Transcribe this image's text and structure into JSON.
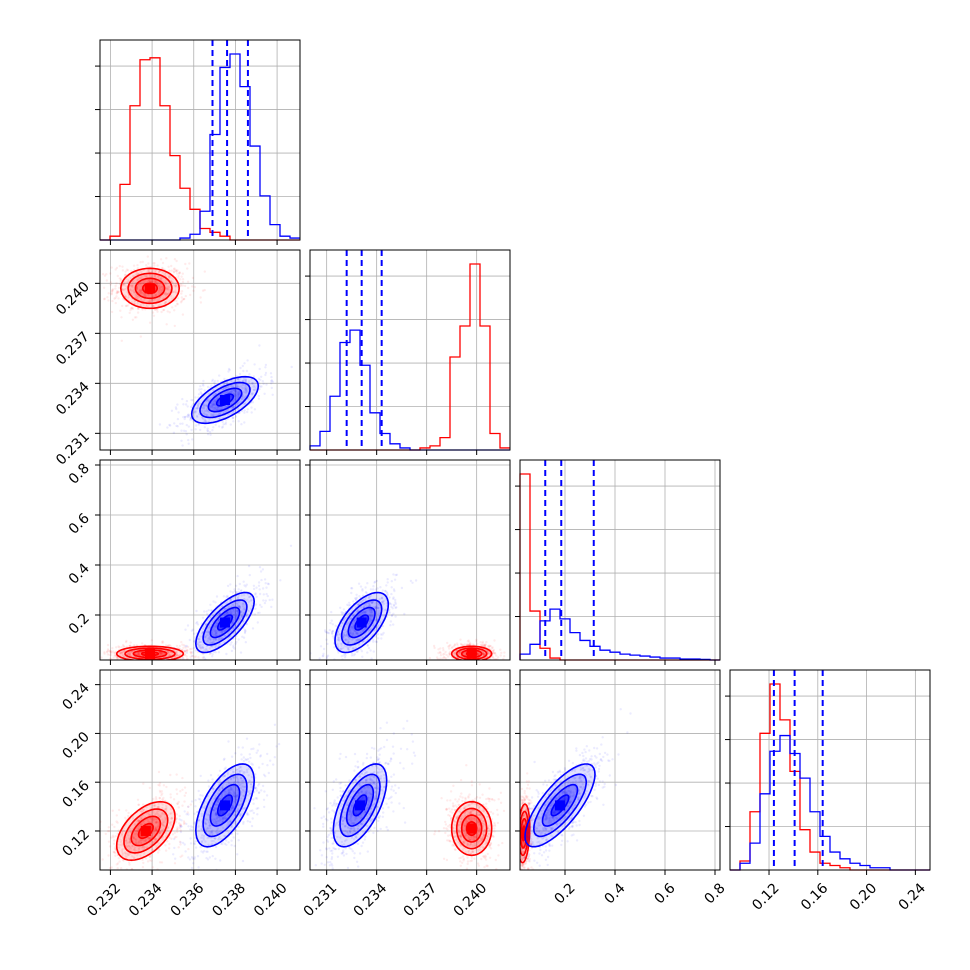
{
  "chart_data": {
    "type": "corner",
    "grid": true,
    "series_colors": [
      "#ff0000",
      "#0000ff"
    ],
    "quantile_line_color": "#0000ff",
    "parameters": [
      {
        "range": [
          0.2315,
          0.2411
        ],
        "ticks": [
          "0.232",
          "0.234",
          "0.236",
          "0.238",
          "0.240"
        ],
        "tick_values": [
          0.232,
          0.234,
          0.236,
          0.238,
          0.24
        ]
      },
      {
        "range": [
          0.23,
          0.242
        ],
        "ticks": [
          "0.231",
          "0.234",
          "0.237",
          "0.240"
        ],
        "tick_values": [
          0.231,
          0.234,
          0.237,
          0.24
        ]
      },
      {
        "range": [
          0.02,
          0.82
        ],
        "ticks": [
          "0.2",
          "0.4",
          "0.6",
          "0.8"
        ],
        "tick_values": [
          0.2,
          0.4,
          0.6,
          0.8
        ]
      },
      {
        "range": [
          0.088,
          0.252
        ],
        "ticks": [
          "0.12",
          "0.16",
          "0.20",
          "0.24"
        ],
        "tick_values": [
          0.12,
          0.16,
          0.2,
          0.24
        ]
      }
    ],
    "diagonal": [
      {
        "quantiles": [
          0.2369,
          0.2376,
          0.2386
        ],
        "hist_red": {
          "edges_start": 0.2315,
          "bin_width": 0.00048,
          "counts": [
            0,
            0.02,
            0.29,
            0.7,
            0.94,
            0.95,
            0.7,
            0.44,
            0.27,
            0.16,
            0.06,
            0.04,
            0.02,
            0,
            0,
            0,
            0,
            0,
            0,
            0
          ]
        },
        "hist_blue": {
          "edges_start": 0.2315,
          "bin_width": 0.00048,
          "counts": [
            0,
            0,
            0,
            0,
            0,
            0,
            0,
            0,
            0.01,
            0.03,
            0.15,
            0.55,
            0.9,
            0.97,
            0.8,
            0.49,
            0.23,
            0.08,
            0.02,
            0.01
          ]
        }
      },
      {
        "quantiles": [
          0.2322,
          0.2331,
          0.2343
        ],
        "hist_red": {
          "edges_start": 0.23,
          "bin_width": 0.0006,
          "counts": [
            0,
            0,
            0,
            0,
            0,
            0,
            0,
            0,
            0,
            0,
            0,
            0.01,
            0.02,
            0.06,
            0.45,
            0.6,
            0.9,
            0.6,
            0.08,
            0.01
          ]
        },
        "hist_blue": {
          "edges_start": 0.23,
          "bin_width": 0.0006,
          "counts": [
            0.02,
            0.09,
            0.26,
            0.52,
            0.58,
            0.41,
            0.18,
            0.08,
            0.03,
            0.01,
            0,
            0,
            0,
            0,
            0,
            0,
            0,
            0,
            0,
            0
          ]
        }
      },
      {
        "quantiles": [
          0.121,
          0.185,
          0.315
        ],
        "hist_red": {
          "edges_start": 0.02,
          "bin_width": 0.04,
          "counts": [
            0.95,
            0.25,
            0.06,
            0.01,
            0,
            0,
            0,
            0,
            0,
            0,
            0,
            0,
            0,
            0,
            0,
            0,
            0,
            0,
            0,
            0
          ]
        },
        "hist_blue": {
          "edges_start": 0.02,
          "bin_width": 0.04,
          "counts": [
            0.03,
            0.08,
            0.2,
            0.26,
            0.21,
            0.14,
            0.1,
            0.07,
            0.05,
            0.04,
            0.03,
            0.025,
            0.02,
            0.015,
            0.01,
            0.01,
            0.005,
            0.005,
            0.003,
            0
          ]
        }
      },
      {
        "quantiles": [
          0.124,
          0.141,
          0.164
        ],
        "hist_red": {
          "edges_start": 0.088,
          "bin_width": 0.0082,
          "counts": [
            0,
            0.04,
            0.26,
            0.61,
            0.83,
            0.67,
            0.44,
            0.18,
            0.08,
            0.03,
            0.02,
            0.01,
            0,
            0,
            0,
            0,
            0,
            0,
            0,
            0
          ]
        },
        "hist_blue": {
          "edges_start": 0.088,
          "bin_width": 0.0082,
          "counts": [
            0,
            0.03,
            0.12,
            0.34,
            0.53,
            0.6,
            0.52,
            0.41,
            0.26,
            0.15,
            0.08,
            0.05,
            0.03,
            0.02,
            0.01,
            0.01,
            0,
            0,
            0,
            0
          ]
        }
      }
    ],
    "blobs": {
      "1-0": {
        "red": {
          "mean": [
            0.2339,
            0.2397
          ],
          "sd": [
            0.0007,
            0.0006
          ],
          "corr": 0.0
        },
        "blue": {
          "mean": [
            0.2375,
            0.233
          ],
          "sd": [
            0.0008,
            0.0007
          ],
          "corr": 0.6
        }
      },
      "2-0": {
        "red": {
          "mean": [
            0.2339,
            0.045
          ],
          "sd": [
            0.0008,
            0.015
          ],
          "corr": 0.0
        },
        "blue": {
          "mean": [
            0.2375,
            0.17
          ],
          "sd": [
            0.0007,
            0.06
          ],
          "corr": 0.7
        }
      },
      "2-1": {
        "red": {
          "mean": [
            0.2397,
            0.045
          ],
          "sd": [
            0.0006,
            0.015
          ],
          "corr": 0.0
        },
        "blue": {
          "mean": [
            0.2331,
            0.17
          ],
          "sd": [
            0.0008,
            0.06
          ],
          "corr": 0.6
        }
      },
      "3-0": {
        "red": {
          "mean": [
            0.2337,
            0.12
          ],
          "sd": [
            0.0007,
            0.012
          ],
          "corr": 0.5
        },
        "blue": {
          "mean": [
            0.2375,
            0.141
          ],
          "sd": [
            0.0007,
            0.017
          ],
          "corr": 0.6
        }
      },
      "3-1": {
        "red": {
          "mean": [
            0.2397,
            0.122
          ],
          "sd": [
            0.0006,
            0.011
          ],
          "corr": 0.0
        },
        "blue": {
          "mean": [
            0.233,
            0.141
          ],
          "sd": [
            0.0008,
            0.017
          ],
          "corr": 0.6
        }
      },
      "3-2": {
        "red": {
          "mean": [
            0.035,
            0.118
          ],
          "sd": [
            0.012,
            0.012
          ],
          "corr": 0.2
        },
        "blue": {
          "mean": [
            0.18,
            0.141
          ],
          "sd": [
            0.07,
            0.017
          ],
          "corr": 0.75
        }
      }
    }
  }
}
